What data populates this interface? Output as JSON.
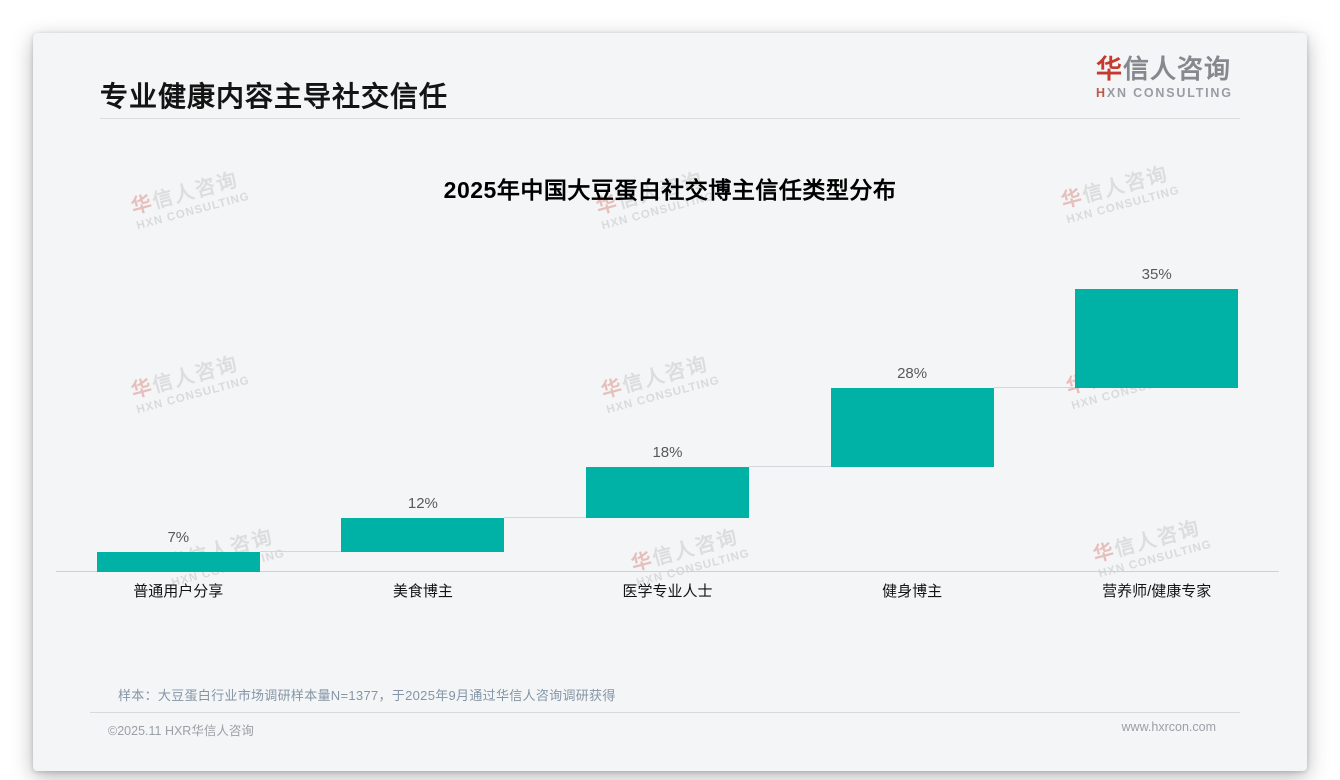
{
  "page": {
    "main_title": "专业健康内容主导社交信任",
    "sample_note": "样本：大豆蛋白行业市场调研样本量N=1377，于2025年9月通过华信人咨询调研获得",
    "footer_left": "©2025.11 HXR华信人咨询",
    "footer_right": "www.hxrcon.com"
  },
  "logo": {
    "hua": "华",
    "rest": "信人咨询",
    "sub_h": "H",
    "sub_rest": "XN CONSULTING"
  },
  "watermark": {
    "hua": "华",
    "rest": "信人咨询",
    "line2": "HXN CONSULTING"
  },
  "colors": {
    "bar_teal": "#00b1a6",
    "brand_red": "#c53a2e",
    "title_black": "#141414"
  },
  "chart_data": {
    "type": "bar",
    "subtype": "waterfall",
    "title": "2025年中国大豆蛋白社交博主信任类型分布",
    "categories": [
      "普通用户分享",
      "美食博主",
      "医学专业人士",
      "健身博主",
      "营养师/健康专家"
    ],
    "values": [
      7,
      12,
      18,
      28,
      35
    ],
    "labels": [
      "7%",
      "12%",
      "18%",
      "28%",
      "35%"
    ],
    "cumulative_start": [
      0,
      7,
      19,
      37,
      65
    ],
    "cumulative_end": [
      7,
      19,
      37,
      65,
      100
    ],
    "ylim": [
      0,
      100
    ],
    "bar_color": "#00b1a6",
    "grid": false,
    "legend": false,
    "xlabel": "",
    "ylabel": ""
  }
}
